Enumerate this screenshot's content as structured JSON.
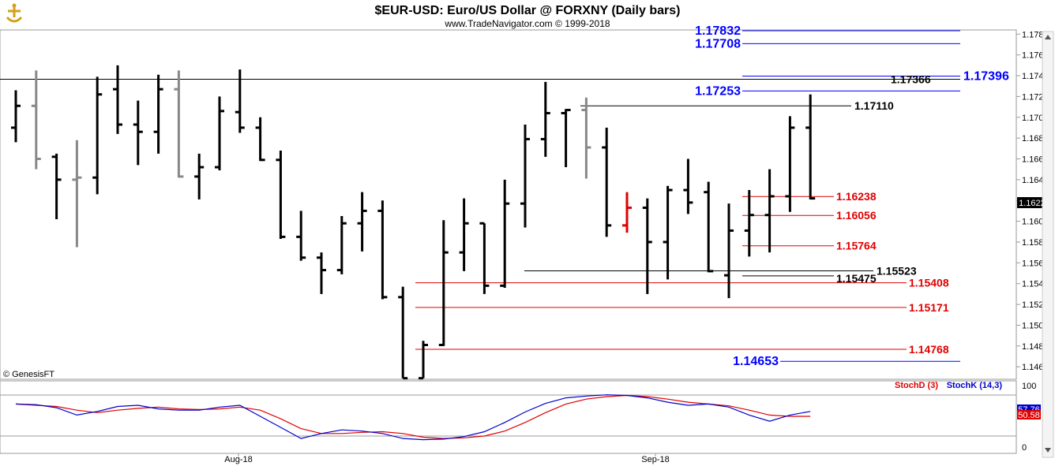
{
  "header": {
    "title": "$EUR-USD:  Euro/US Dollar @ FORXNY  (Daily bars)",
    "subtitle": "www.TradeNavigator.com © 1999-2018"
  },
  "footer": {
    "credit": "© GenesisFT"
  },
  "chart_data": {
    "type": "ohlc",
    "title": "$EUR-USD:  Euro/US Dollar @ FORXNY  (Daily bars)",
    "ylim": [
      1.1448,
      1.1784
    ],
    "y_ticks": [
      "1.17800",
      "1.17600",
      "1.17400",
      "1.17200",
      "1.17000",
      "1.16800",
      "1.16600",
      "1.16400",
      "1.16200",
      "1.16000",
      "1.15800",
      "1.15600",
      "1.15400",
      "1.15200",
      "1.15000",
      "1.14800",
      "1.14600"
    ],
    "x_labels": [
      "Aug-18",
      "Sep-18"
    ],
    "last_price": "1.16224",
    "bars": [
      {
        "o": 1.169,
        "h": 1.1726,
        "l": 1.1676,
        "c": 1.1711,
        "color": "black"
      },
      {
        "o": 1.1711,
        "h": 1.1745,
        "l": 1.165,
        "c": 1.166,
        "color": "gray"
      },
      {
        "o": 1.1662,
        "h": 1.1665,
        "l": 1.1602,
        "c": 1.164,
        "color": "black"
      },
      {
        "o": 1.164,
        "h": 1.1678,
        "l": 1.1575,
        "c": 1.1642,
        "color": "gray"
      },
      {
        "o": 1.1642,
        "h": 1.1739,
        "l": 1.1626,
        "c": 1.1722,
        "color": "black"
      },
      {
        "o": 1.1727,
        "h": 1.175,
        "l": 1.1684,
        "c": 1.1693,
        "color": "black"
      },
      {
        "o": 1.1693,
        "h": 1.1716,
        "l": 1.1654,
        "c": 1.1686,
        "color": "black"
      },
      {
        "o": 1.1686,
        "h": 1.1741,
        "l": 1.1665,
        "c": 1.1727,
        "color": "black"
      },
      {
        "o": 1.1727,
        "h": 1.1745,
        "l": 1.1642,
        "c": 1.1643,
        "color": "gray"
      },
      {
        "o": 1.1643,
        "h": 1.1665,
        "l": 1.1621,
        "c": 1.1652,
        "color": "black"
      },
      {
        "o": 1.1652,
        "h": 1.172,
        "l": 1.1649,
        "c": 1.1706,
        "color": "black"
      },
      {
        "o": 1.1705,
        "h": 1.1746,
        "l": 1.1685,
        "c": 1.169,
        "color": "black"
      },
      {
        "o": 1.169,
        "h": 1.17,
        "l": 1.1658,
        "c": 1.1659,
        "color": "black"
      },
      {
        "o": 1.1659,
        "h": 1.1668,
        "l": 1.1583,
        "c": 1.1585,
        "color": "black"
      },
      {
        "o": 1.1585,
        "h": 1.161,
        "l": 1.1562,
        "c": 1.1565,
        "color": "black"
      },
      {
        "o": 1.1565,
        "h": 1.157,
        "l": 1.153,
        "c": 1.1553,
        "color": "black"
      },
      {
        "o": 1.1553,
        "h": 1.1605,
        "l": 1.1549,
        "c": 1.1598,
        "color": "black"
      },
      {
        "o": 1.1598,
        "h": 1.1628,
        "l": 1.1571,
        "c": 1.161,
        "color": "black"
      },
      {
        "o": 1.161,
        "h": 1.162,
        "l": 1.1525,
        "c": 1.1527,
        "color": "black"
      },
      {
        "o": 1.1527,
        "h": 1.1537,
        "l": 1.1449,
        "c": 1.1449,
        "color": "black"
      },
      {
        "o": 1.1449,
        "h": 1.1485,
        "l": 1.1449,
        "c": 1.1481,
        "color": "black"
      },
      {
        "o": 1.1481,
        "h": 1.1601,
        "l": 1.148,
        "c": 1.157,
        "color": "black"
      },
      {
        "o": 1.157,
        "h": 1.1622,
        "l": 1.1552,
        "c": 1.1598,
        "color": "black"
      },
      {
        "o": 1.1598,
        "h": 1.1598,
        "l": 1.153,
        "c": 1.1538,
        "color": "black"
      },
      {
        "o": 1.1538,
        "h": 1.164,
        "l": 1.1536,
        "c": 1.1617,
        "color": "black"
      },
      {
        "o": 1.1617,
        "h": 1.1693,
        "l": 1.1594,
        "c": 1.1679,
        "color": "black"
      },
      {
        "o": 1.1679,
        "h": 1.1734,
        "l": 1.1662,
        "c": 1.1704,
        "color": "black"
      },
      {
        "o": 1.1704,
        "h": 1.1708,
        "l": 1.1652,
        "c": 1.1707,
        "color": "black"
      },
      {
        "o": 1.1707,
        "h": 1.1719,
        "l": 1.1641,
        "c": 1.1671,
        "color": "gray"
      },
      {
        "o": 1.1671,
        "h": 1.169,
        "l": 1.1585,
        "c": 1.1596,
        "color": "black"
      },
      {
        "o": 1.1596,
        "h": 1.1628,
        "l": 1.1589,
        "c": 1.1613,
        "color": "red"
      },
      {
        "o": 1.1613,
        "h": 1.1622,
        "l": 1.153,
        "c": 1.158,
        "color": "black"
      },
      {
        "o": 1.158,
        "h": 1.1634,
        "l": 1.1544,
        "c": 1.163,
        "color": "black"
      },
      {
        "o": 1.163,
        "h": 1.166,
        "l": 1.1607,
        "c": 1.1618,
        "color": "black"
      },
      {
        "o": 1.1628,
        "h": 1.1638,
        "l": 1.1551,
        "c": 1.1552,
        "color": "black"
      },
      {
        "o": 1.1548,
        "h": 1.1617,
        "l": 1.1526,
        "c": 1.1591,
        "color": "black"
      },
      {
        "o": 1.1591,
        "h": 1.163,
        "l": 1.1566,
        "c": 1.1606,
        "color": "black"
      },
      {
        "o": 1.1606,
        "h": 1.165,
        "l": 1.157,
        "c": 1.1624,
        "color": "black"
      },
      {
        "o": 1.1624,
        "h": 1.1701,
        "l": 1.1609,
        "c": 1.169,
        "color": "black"
      },
      {
        "o": 1.169,
        "h": 1.1722,
        "l": 1.1621,
        "c": 1.1622,
        "color": "black"
      }
    ],
    "levels": [
      {
        "value": "1.17832",
        "color": "#0000ff",
        "size": "big",
        "extend": "left"
      },
      {
        "value": "1.17708",
        "color": "#0000ff",
        "size": "big",
        "extend": "left"
      },
      {
        "value": "1.17396",
        "color": "#0000ff",
        "size": "big",
        "extend": "left2"
      },
      {
        "value": "1.17366",
        "color": "#000000",
        "size": "normal",
        "extend": "full"
      },
      {
        "value": "1.17253",
        "color": "#0000ff",
        "size": "big",
        "extend": "left"
      },
      {
        "value": "1.17110",
        "color": "#000000",
        "size": "normal",
        "extend": "mid"
      },
      {
        "value": "1.16238",
        "color": "#e00000",
        "size": "normal",
        "extend": "short"
      },
      {
        "value": "1.16056",
        "color": "#e00000",
        "size": "normal",
        "extend": "short"
      },
      {
        "value": "1.15764",
        "color": "#e00000",
        "size": "normal",
        "extend": "short"
      },
      {
        "value": "1.15523",
        "color": "#000000",
        "size": "normal",
        "extend": "midleft"
      },
      {
        "value": "1.15475",
        "color": "#000000",
        "size": "normal",
        "extend": "short"
      },
      {
        "value": "1.15408",
        "color": "#e00000",
        "size": "normal",
        "extend": "long"
      },
      {
        "value": "1.15171",
        "color": "#e00000",
        "size": "normal",
        "extend": "long"
      },
      {
        "value": "1.14768",
        "color": "#e00000",
        "size": "normal",
        "extend": "long"
      },
      {
        "value": "1.14653",
        "color": "#0000ff",
        "size": "big",
        "extend": "leftb"
      }
    ],
    "stochastic": {
      "ylim": [
        0,
        100
      ],
      "y_ticks": [
        "100",
        "0"
      ],
      "legend_d": "StochD (3)",
      "legend_k": "StochK (14,3)",
      "d_label": "50.58",
      "k_label": "57.76",
      "k_values": [
        70,
        69,
        64,
        52,
        58,
        66,
        68,
        62,
        60,
        60,
        65,
        68,
        50,
        32,
        14,
        22,
        28,
        26,
        22,
        14,
        12,
        13,
        17,
        25,
        40,
        57,
        71,
        80,
        83,
        85,
        84,
        80,
        73,
        68,
        70,
        65,
        52,
        42,
        52,
        58
      ],
      "d_values": [
        70,
        68,
        66,
        60,
        56,
        60,
        63,
        65,
        62,
        61,
        62,
        65,
        60,
        46,
        30,
        22,
        22,
        24,
        25,
        22,
        16,
        14,
        15,
        18,
        26,
        40,
        56,
        70,
        78,
        82,
        84,
        82,
        78,
        73,
        70,
        67,
        60,
        52,
        50,
        50
      ]
    }
  }
}
